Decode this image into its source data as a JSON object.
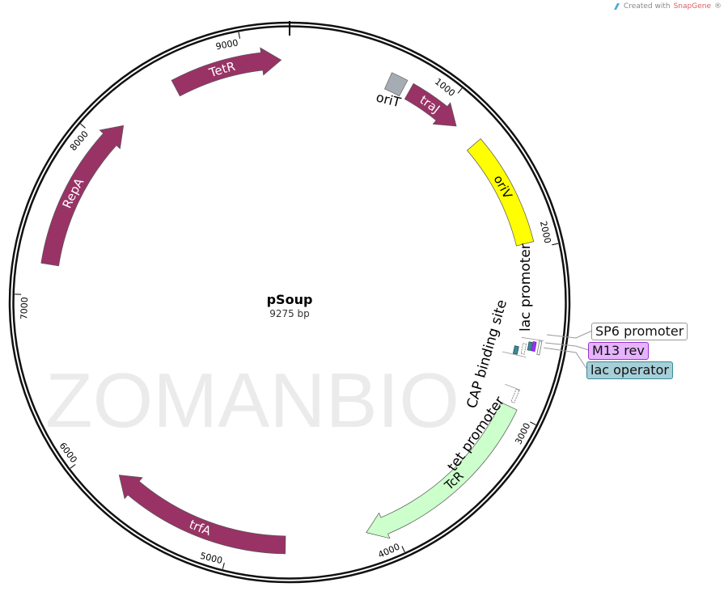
{
  "credit": {
    "prefix": "Created with ",
    "brand": "SnapGene",
    "suffix": "®",
    "logo_icon": "snapgene-logo-icon"
  },
  "watermark": "ZOMANBIO",
  "plasmid": {
    "name": "pSoup",
    "size_label": "9275 bp",
    "length_bp": 9275
  },
  "ticks": [
    {
      "bp": 1000,
      "label": "1000"
    },
    {
      "bp": 2000,
      "label": "2000"
    },
    {
      "bp": 3000,
      "label": "3000"
    },
    {
      "bp": 4000,
      "label": "4000"
    },
    {
      "bp": 5000,
      "label": "5000"
    },
    {
      "bp": 6000,
      "label": "6000"
    },
    {
      "bp": 7000,
      "label": "7000"
    },
    {
      "bp": 8000,
      "label": "8000"
    },
    {
      "bp": 9000,
      "label": "9000"
    }
  ],
  "features": [
    {
      "name": "TetR",
      "start": 8554,
      "end": 9224,
      "shape": "arrow",
      "color": "#993366",
      "text_color": "#ffffff"
    },
    {
      "name": "traJ",
      "start": 760,
      "end": 1118,
      "shape": "arrow",
      "color": "#993366",
      "text_color": "#ffffff"
    },
    {
      "name": "oriV",
      "start": 1273,
      "end": 1958,
      "shape": "band",
      "color": "#ffff00",
      "text_color": "#000000"
    },
    {
      "name": "TcR",
      "start": 2971,
      "end": 4163,
      "shape": "arrow",
      "color": "#ccffcc",
      "text_color": "#000000"
    },
    {
      "name": "trfA",
      "start": 4663,
      "end": 5787,
      "shape": "arrow",
      "color": "#993366",
      "text_color": "#ffffff"
    },
    {
      "name": "RepA",
      "start": 7188,
      "end": 8162,
      "shape": "arrow",
      "color": "#993366",
      "text_color": "#ffffff"
    }
  ],
  "outside_labels": {
    "oriT": {
      "text": "oriT",
      "color": "#a6acb3"
    },
    "lac_promoter": "lac promoter",
    "cap_site": "CAP binding site",
    "tet_promoter": "tet promoter"
  },
  "callouts": [
    {
      "text": "SP6 promoter",
      "fill": "#ffffff",
      "border": "#999999"
    },
    {
      "text": "M13 rev",
      "fill": "#e6b3ff",
      "border": "#9933cc"
    },
    {
      "text": "lac operator",
      "fill": "#a7cfd8",
      "border": "#3c8a99"
    }
  ]
}
